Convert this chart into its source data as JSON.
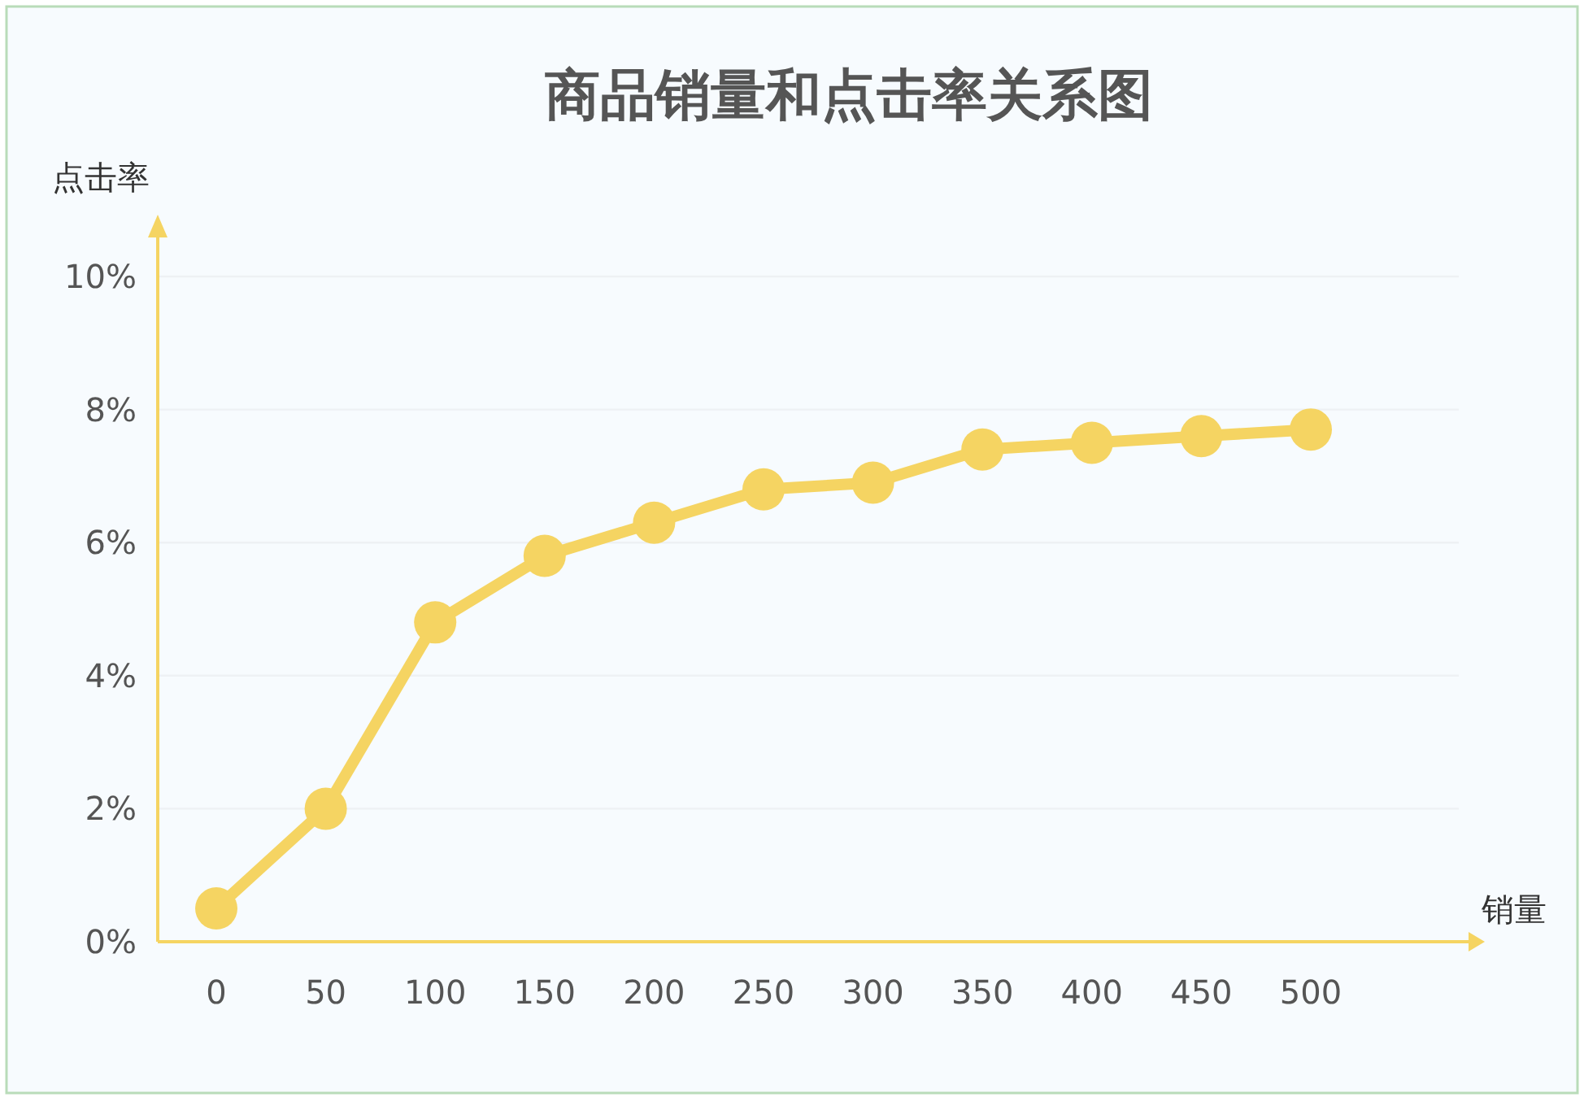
{
  "chart_data": {
    "type": "line",
    "title": "商品销量和点击率关系图",
    "xlabel": "销量",
    "ylabel": "点击率",
    "categories": [
      "0",
      "50",
      "100",
      "150",
      "200",
      "250",
      "300",
      "350",
      "400",
      "450",
      "500"
    ],
    "values": [
      0.5,
      2.0,
      4.8,
      5.8,
      6.3,
      6.8,
      6.9,
      7.4,
      7.5,
      7.6,
      7.7
    ],
    "color": "#f5d462",
    "ylim": [
      0,
      10
    ],
    "yticks": [
      {
        "value": 0,
        "label": "0%"
      },
      {
        "value": 2,
        "label": "2%"
      },
      {
        "value": 4,
        "label": "4%"
      },
      {
        "value": 6,
        "label": "6%"
      },
      {
        "value": 8,
        "label": "8%"
      },
      {
        "value": 10,
        "label": "10%"
      }
    ],
    "grid": "y",
    "marker": "circle",
    "line_style": "solid"
  }
}
